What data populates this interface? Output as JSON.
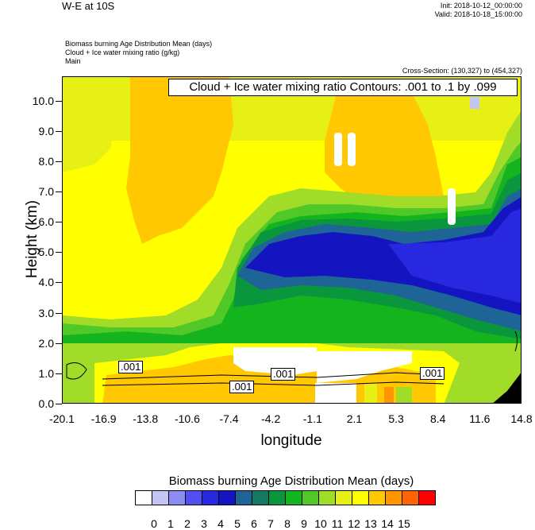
{
  "header": {
    "title_left": "W-E at 10S",
    "init": "Init: 2018-10-12_00:00:00",
    "valid": "Valid: 2018-10-18_15:00:00",
    "field1": "Biomass burning Age Distribution Mean   (days)",
    "field2": "Cloud + Ice water mixing ratio   (g/kg)",
    "domain": "Main",
    "cross_section": "Cross-Section: (130,327) to (454,327)"
  },
  "chart_data": {
    "type": "heatmap",
    "title": "Cloud + Ice water mixing ratio Contours: .001 to .1 by .099",
    "xlabel": "longitude",
    "ylabel": "Height (km)",
    "xlim": [
      -20.1,
      14.8
    ],
    "ylim": [
      0.0,
      10.8
    ],
    "x_ticks": [
      "-20.1",
      "-16.9",
      "-13.8",
      "-10.6",
      "-7.4",
      "-4.2",
      "-1.1",
      "2.1",
      "5.3",
      "8.4",
      "11.6",
      "14.8"
    ],
    "y_ticks": [
      "0.0",
      "1.0",
      "2.0",
      "3.0",
      "4.0",
      "5.0",
      "6.0",
      "7.0",
      "8.0",
      "9.0",
      "10.0"
    ],
    "y_tick_values": [
      0,
      1,
      2,
      3,
      4,
      5,
      6,
      7,
      8,
      9,
      10
    ],
    "contour_labels": [
      ".001",
      ".001",
      ".001",
      ".001"
    ],
    "colorbar": {
      "title": "Biomass burning Age Distribution Mean  (days)",
      "labels": [
        "0",
        "1",
        "2",
        "3",
        "4",
        "5",
        "6",
        "7",
        "8",
        "9",
        "10",
        "11",
        "12",
        "13",
        "14",
        "15"
      ],
      "colors": [
        "#ffffff",
        "#c4c4f5",
        "#8c8cf5",
        "#5050f0",
        "#2828e0",
        "#1414c0",
        "#1e6496",
        "#147864",
        "#0a963c",
        "#14b41e",
        "#50c828",
        "#a0dc28",
        "#e6f014",
        "#ffff00",
        "#ffc800",
        "#ff9600",
        "#ff6400",
        "#ff0000"
      ]
    }
  }
}
